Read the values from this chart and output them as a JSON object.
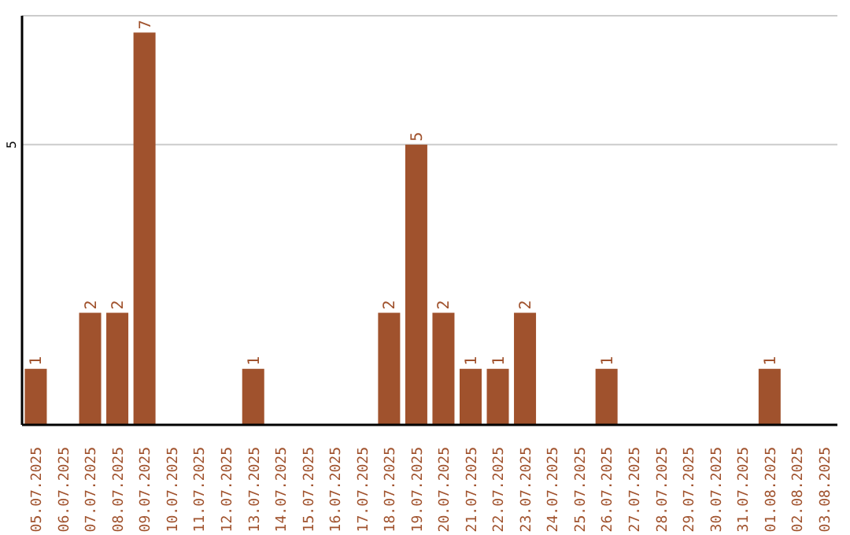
{
  "chart_data": {
    "type": "bar",
    "categories": [
      "05.07.2025",
      "06.07.2025",
      "07.07.2025",
      "08.07.2025",
      "09.07.2025",
      "10.07.2025",
      "11.07.2025",
      "12.07.2025",
      "13.07.2025",
      "14.07.2025",
      "15.07.2025",
      "16.07.2025",
      "17.07.2025",
      "18.07.2025",
      "19.07.2025",
      "20.07.2025",
      "21.07.2025",
      "22.07.2025",
      "23.07.2025",
      "24.07.2025",
      "25.07.2025",
      "26.07.2025",
      "27.07.2025",
      "28.07.2025",
      "29.07.2025",
      "30.07.2025",
      "31.07.2025",
      "01.08.2025",
      "02.08.2025",
      "03.08.2025"
    ],
    "values": [
      1,
      0,
      2,
      2,
      7,
      0,
      0,
      0,
      1,
      0,
      0,
      0,
      0,
      2,
      5,
      2,
      1,
      1,
      2,
      0,
      0,
      1,
      0,
      0,
      0,
      0,
      0,
      1,
      0,
      0
    ],
    "value_labels": [
      "1",
      null,
      "2",
      "2",
      "7",
      null,
      null,
      null,
      "1",
      null,
      null,
      null,
      null,
      "2",
      "5",
      "2",
      "1",
      "1",
      "2",
      null,
      null,
      "1",
      null,
      null,
      null,
      null,
      null,
      "1",
      null,
      null
    ],
    "color": "#a0522d",
    "ylim": [
      0,
      7.3
    ],
    "yticks": [
      5
    ],
    "grid": "y"
  }
}
